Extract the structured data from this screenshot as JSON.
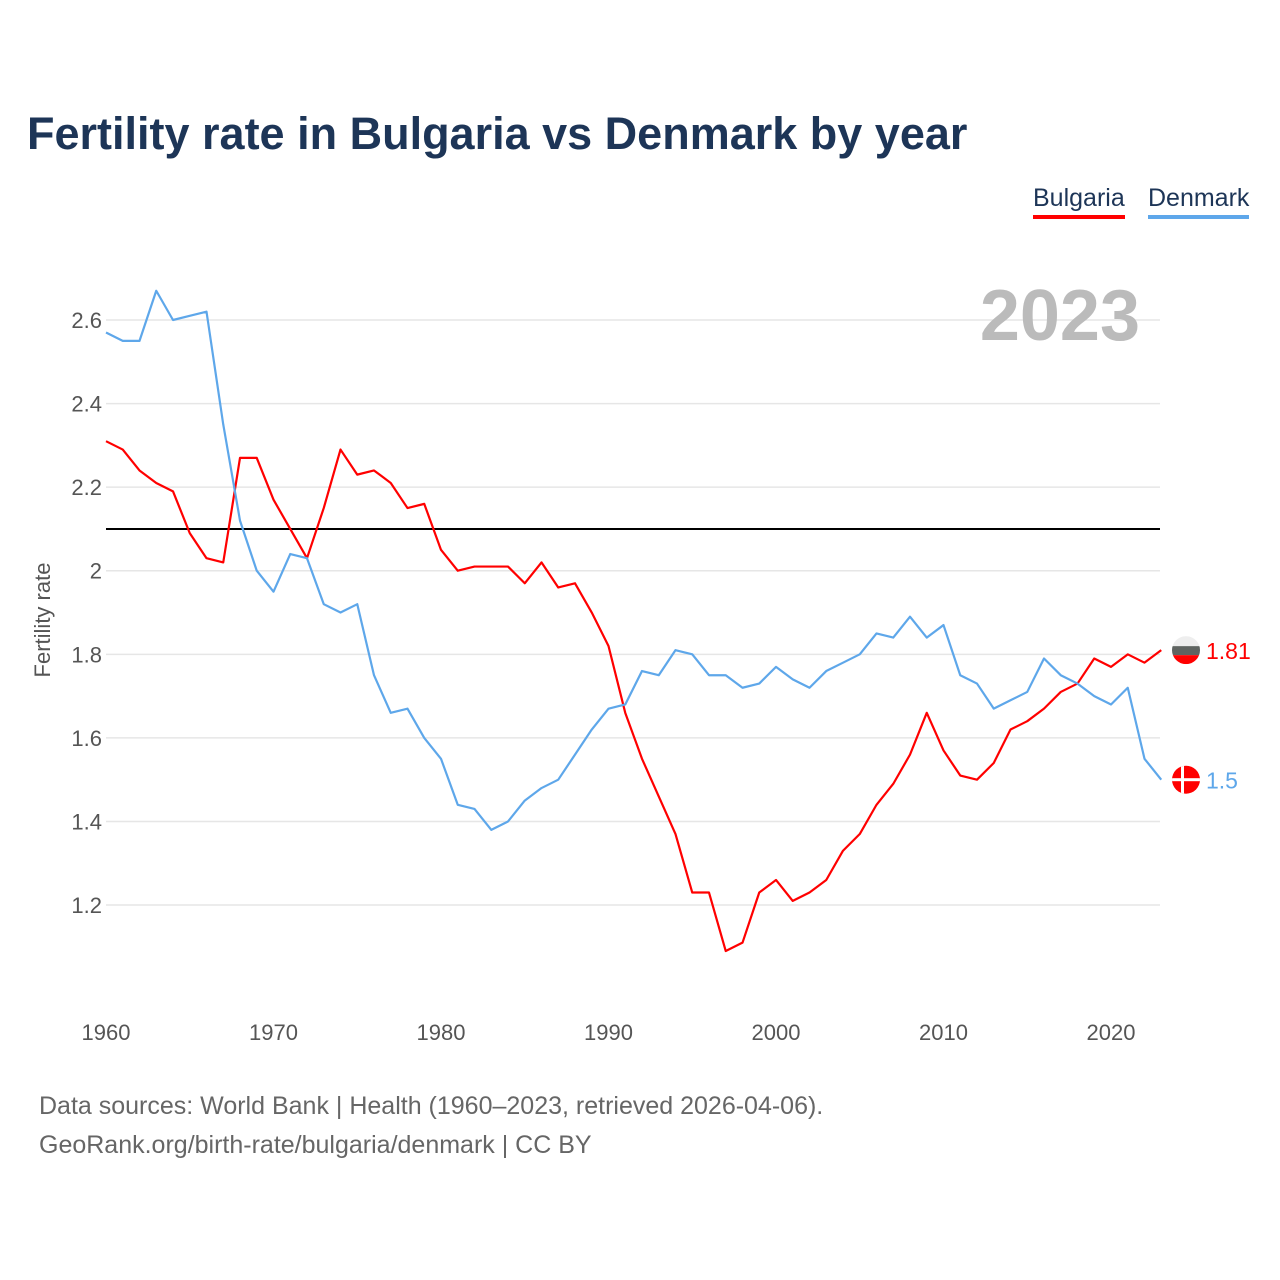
{
  "title": "Fertility rate in Bulgaria vs Denmark by year",
  "legend": [
    {
      "label": "Bulgaria",
      "color": "#ff0000"
    },
    {
      "label": "Denmark",
      "color": "#5ea7ea"
    }
  ],
  "year_overlay": "2023",
  "source_line1": "Data sources: World Bank | Health (1960–2023, retrieved 2026-04-06).",
  "source_line2": "GeoRank.org/birth-rate/bulgaria/denmark | CC BY",
  "chart_data": {
    "type": "line",
    "title": "Fertility rate in Bulgaria vs Denmark by year",
    "xlabel": "",
    "ylabel": "Fertility rate",
    "xlim": [
      1960,
      2023
    ],
    "ylim": [
      1.0,
      2.7
    ],
    "x_ticks": [
      1960,
      1970,
      1980,
      1990,
      2000,
      2010,
      2020
    ],
    "y_ticks": [
      1.2,
      1.4,
      1.6,
      1.8,
      2,
      2.2,
      2.4,
      2.6
    ],
    "y_tick_labels": [
      "1.2",
      "1.4",
      "1.6",
      "1.8",
      "2",
      "2.2",
      "2.4",
      "2.6"
    ],
    "reference_line": 2.1,
    "grid": true,
    "legend_position": "top-right",
    "x_start": 1960,
    "series": [
      {
        "name": "Bulgaria",
        "color": "#ff0000",
        "end_label": "1.81",
        "values": [
          2.31,
          2.29,
          2.24,
          2.21,
          2.19,
          2.09,
          2.03,
          2.02,
          2.27,
          2.27,
          2.17,
          2.1,
          2.03,
          2.15,
          2.29,
          2.23,
          2.24,
          2.21,
          2.15,
          2.16,
          2.05,
          2.0,
          2.01,
          2.01,
          2.01,
          1.97,
          2.02,
          1.96,
          1.97,
          1.9,
          1.82,
          1.66,
          1.55,
          1.46,
          1.37,
          1.23,
          1.23,
          1.09,
          1.11,
          1.23,
          1.26,
          1.21,
          1.23,
          1.26,
          1.33,
          1.37,
          1.44,
          1.49,
          1.56,
          1.66,
          1.57,
          1.51,
          1.5,
          1.54,
          1.62,
          1.64,
          1.67,
          1.71,
          1.73,
          1.79,
          1.77,
          1.8,
          1.78,
          1.81
        ]
      },
      {
        "name": "Denmark",
        "color": "#5ea7ea",
        "end_label": "1.5",
        "values": [
          2.57,
          2.55,
          2.55,
          2.67,
          2.6,
          2.61,
          2.62,
          2.35,
          2.12,
          2.0,
          1.95,
          2.04,
          2.03,
          1.92,
          1.9,
          1.92,
          1.75,
          1.66,
          1.67,
          1.6,
          1.55,
          1.44,
          1.43,
          1.38,
          1.4,
          1.45,
          1.48,
          1.5,
          1.56,
          1.62,
          1.67,
          1.68,
          1.76,
          1.75,
          1.81,
          1.8,
          1.75,
          1.75,
          1.72,
          1.73,
          1.77,
          1.74,
          1.72,
          1.76,
          1.78,
          1.8,
          1.85,
          1.84,
          1.89,
          1.84,
          1.87,
          1.75,
          1.73,
          1.67,
          1.69,
          1.71,
          1.79,
          1.75,
          1.73,
          1.7,
          1.68,
          1.72,
          1.55,
          1.5
        ]
      }
    ]
  }
}
